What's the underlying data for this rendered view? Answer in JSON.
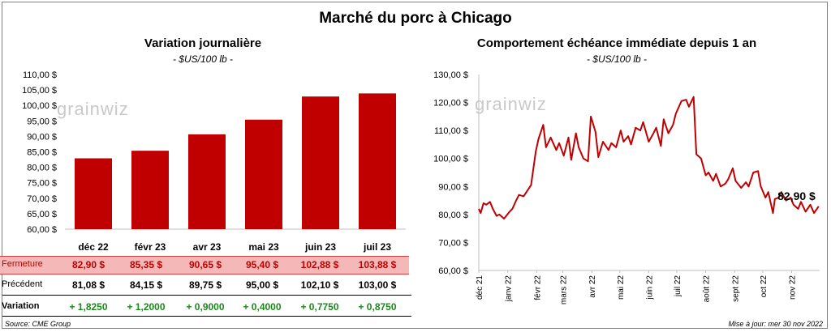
{
  "title": "Marché du porc à Chicago",
  "left": {
    "title": "Variation journalière",
    "unit": "- $US/100 lb -",
    "watermark": "grainwiz",
    "yticks": [
      "110,00 $",
      "105,00 $",
      "100,00 $",
      "95,00 $",
      "90,00 $",
      "85,00 $",
      "80,00 $",
      "75,00 $",
      "70,00 $",
      "65,00 $",
      "60,00 $"
    ],
    "table": {
      "fermeture_label": "Fermeture",
      "precedent_label": "Précédent",
      "variation_label": "Variation",
      "fermeture": [
        "82,90 $",
        "85,35 $",
        "90,65 $",
        "95,40 $",
        "102,88 $",
        "103,88 $"
      ],
      "precedent": [
        "81,08 $",
        "84,15 $",
        "89,75 $",
        "95,00 $",
        "102,10 $",
        "103,00 $"
      ],
      "variation": [
        "+ 1,8250",
        "+ 1,2000",
        "+ 0,9000",
        "+ 0,4000",
        "+ 0,7750",
        "+ 0,8750"
      ]
    }
  },
  "right": {
    "title": "Comportement échéance immédiate depuis 1 an",
    "unit": "- $US/100 lb -",
    "watermark": "grainwiz",
    "last_label": "82,90 $",
    "yticks": [
      "130,00 $",
      "120,00 $",
      "110,00 $",
      "100,00 $",
      "90,00 $",
      "80,00 $",
      "70,00 $",
      "60,00 $"
    ]
  },
  "footer": {
    "source": "Source: CME Group",
    "updated": "Mise à jour: mer 30 nov 2022"
  },
  "colors": {
    "bar": "#c00000",
    "line": "#c00000",
    "close_bg": "#f4b8b8",
    "variation": "#1a8a1a"
  },
  "chart_data": [
    {
      "type": "bar",
      "title": "Variation journalière",
      "categories": [
        "déc 22",
        "févr 23",
        "avr 23",
        "mai 23",
        "juin 23",
        "juil 23"
      ],
      "values": [
        82.9,
        85.35,
        90.65,
        95.4,
        102.88,
        103.88
      ],
      "ylim": [
        60,
        110
      ],
      "grid": false
    },
    {
      "type": "line",
      "title": "Comportement échéance immédiate depuis 1 an",
      "x_labels": [
        "déc 21",
        "janv 22",
        "févr 22",
        "mars 22",
        "avr 22",
        "mai 22",
        "juin 22",
        "juil 22",
        "août 22",
        "sept 22",
        "oct 22",
        "nov 22"
      ],
      "ylim": [
        60,
        130
      ],
      "grid": false,
      "series": [
        {
          "x": [
            "2021-12-01",
            "2021-12-03",
            "2021-12-06",
            "2021-12-09",
            "2021-12-13",
            "2021-12-16",
            "2021-12-20",
            "2021-12-23",
            "2021-12-28",
            "2022-01-03",
            "2022-01-06",
            "2022-01-10",
            "2022-01-13",
            "2022-01-18",
            "2022-01-21",
            "2022-01-26",
            "2022-01-31",
            "2022-02-03",
            "2022-02-08",
            "2022-02-11",
            "2022-02-16",
            "2022-02-22",
            "2022-02-25",
            "2022-03-02",
            "2022-03-07",
            "2022-03-10",
            "2022-03-15",
            "2022-03-18",
            "2022-03-23",
            "2022-03-28",
            "2022-03-31",
            "2022-04-05",
            "2022-04-08",
            "2022-04-13",
            "2022-04-19",
            "2022-04-22",
            "2022-04-27",
            "2022-05-02",
            "2022-05-05",
            "2022-05-10",
            "2022-05-13",
            "2022-05-18",
            "2022-05-23",
            "2022-05-26",
            "2022-06-01",
            "2022-06-06",
            "2022-06-09",
            "2022-06-14",
            "2022-06-17",
            "2022-06-22",
            "2022-06-27",
            "2022-06-30",
            "2022-07-06",
            "2022-07-11",
            "2022-07-14",
            "2022-07-19",
            "2022-07-22",
            "2022-07-27",
            "2022-08-01",
            "2022-08-04",
            "2022-08-09",
            "2022-08-12",
            "2022-08-17",
            "2022-08-22",
            "2022-08-25",
            "2022-08-30",
            "2022-09-02",
            "2022-09-08",
            "2022-09-13",
            "2022-09-16",
            "2022-09-21",
            "2022-09-26",
            "2022-09-29",
            "2022-10-04",
            "2022-10-07",
            "2022-10-12",
            "2022-10-14",
            "2022-10-18",
            "2022-10-21",
            "2022-10-26",
            "2022-10-31",
            "2022-11-03",
            "2022-11-08",
            "2022-11-11",
            "2022-11-16",
            "2022-11-21",
            "2022-11-25",
            "2022-11-30"
          ],
          "y": [
            82.0,
            80.5,
            84.0,
            83.5,
            84.5,
            82.0,
            79.5,
            80.0,
            78.5,
            81.0,
            82.0,
            85.0,
            87.0,
            86.5,
            88.0,
            90.5,
            102.5,
            107.0,
            112.0,
            104.0,
            107.5,
            103.0,
            105.5,
            101.0,
            107.5,
            99.5,
            109.0,
            104.0,
            100.0,
            99.0,
            115.0,
            109.5,
            100.5,
            106.0,
            103.0,
            105.5,
            104.0,
            110.0,
            106.0,
            108.0,
            105.0,
            111.0,
            110.0,
            113.0,
            106.0,
            109.0,
            111.0,
            104.5,
            114.0,
            109.0,
            112.0,
            116.0,
            120.5,
            121.0,
            118.5,
            122.0,
            101.5,
            100.0,
            94.0,
            95.0,
            92.0,
            94.5,
            90.0,
            91.0,
            92.5,
            96.5,
            92.0,
            89.5,
            91.5,
            90.0,
            95.0,
            95.5,
            90.0,
            86.0,
            88.0,
            80.5,
            85.5,
            86.0,
            88.0,
            85.0,
            86.0,
            83.5,
            82.0,
            84.5,
            81.0,
            83.5,
            80.5,
            82.9
          ]
        }
      ]
    }
  ]
}
